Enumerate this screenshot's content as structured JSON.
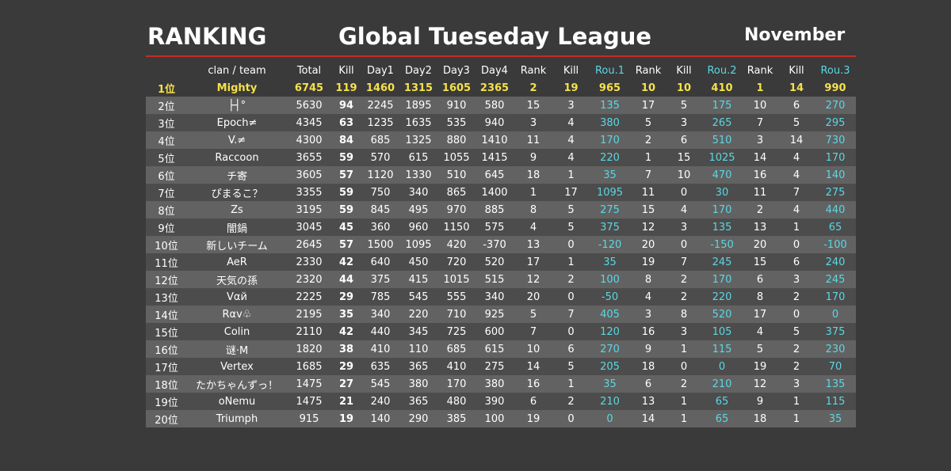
{
  "header": {
    "left_title": "RANKING",
    "center_title": "Global Tueseday League",
    "right_title": "November"
  },
  "colors": {
    "background": "#3a3a3a",
    "accent_line": "#c62a24",
    "highlight_yellow": "#f5e14a",
    "round_cyan": "#5ad7e3",
    "row_light": "#626262",
    "row_dark": "#4c4c4c"
  },
  "table": {
    "columns": [
      "",
      "clan / team",
      "Total",
      "Kill",
      "Day1",
      "Day2",
      "Day3",
      "Day4",
      "Rank",
      "Kill",
      "Rou.1",
      "Rank",
      "Kill",
      "Rou.2",
      "Rank",
      "Kill",
      "Rou.3"
    ],
    "rows": [
      [
        "1位",
        "Mighty",
        "6745",
        "119",
        "1460",
        "1315",
        "1605",
        "2365",
        "2",
        "19",
        "965",
        "10",
        "10",
        "410",
        "1",
        "14",
        "990"
      ],
      [
        "2位",
        "├┤°",
        "5630",
        "94",
        "2245",
        "1895",
        "910",
        "580",
        "15",
        "3",
        "135",
        "17",
        "5",
        "175",
        "10",
        "6",
        "270"
      ],
      [
        "3位",
        "Epoch≠",
        "4345",
        "63",
        "1235",
        "1635",
        "535",
        "940",
        "3",
        "4",
        "380",
        "5",
        "3",
        "265",
        "7",
        "5",
        "295"
      ],
      [
        "4位",
        "V.≠",
        "4300",
        "84",
        "685",
        "1325",
        "880",
        "1410",
        "11",
        "4",
        "170",
        "2",
        "6",
        "510",
        "3",
        "14",
        "730"
      ],
      [
        "5位",
        "Raccoon",
        "3655",
        "59",
        "570",
        "615",
        "1055",
        "1415",
        "9",
        "4",
        "220",
        "1",
        "15",
        "1025",
        "14",
        "4",
        "170"
      ],
      [
        "6位",
        "チ寄",
        "3605",
        "57",
        "1120",
        "1330",
        "510",
        "645",
        "18",
        "1",
        "35",
        "7",
        "10",
        "470",
        "16",
        "4",
        "140"
      ],
      [
        "7位",
        "ぴまるこ？",
        "3355",
        "59",
        "750",
        "340",
        "865",
        "1400",
        "1",
        "17",
        "1095",
        "11",
        "0",
        "30",
        "11",
        "7",
        "275"
      ],
      [
        "8位",
        "Zs",
        "3195",
        "59",
        "845",
        "495",
        "970",
        "885",
        "8",
        "5",
        "275",
        "15",
        "4",
        "170",
        "2",
        "4",
        "440"
      ],
      [
        "9位",
        "闇鍋",
        "3045",
        "45",
        "360",
        "960",
        "1150",
        "575",
        "4",
        "5",
        "375",
        "12",
        "3",
        "135",
        "13",
        "1",
        "65"
      ],
      [
        "10位",
        "新しいチーム",
        "2645",
        "57",
        "1500",
        "1095",
        "420",
        "-370",
        "13",
        "0",
        "-120",
        "20",
        "0",
        "-150",
        "20",
        "0",
        "-100"
      ],
      [
        "11位",
        "AeR",
        "2330",
        "42",
        "640",
        "450",
        "720",
        "520",
        "17",
        "1",
        "35",
        "19",
        "7",
        "245",
        "15",
        "6",
        "240"
      ],
      [
        "12位",
        "天気の孫",
        "2320",
        "44",
        "375",
        "415",
        "1015",
        "515",
        "12",
        "2",
        "100",
        "8",
        "2",
        "170",
        "6",
        "3",
        "245"
      ],
      [
        "13位",
        "Vαй",
        "2225",
        "29",
        "785",
        "545",
        "555",
        "340",
        "20",
        "0",
        "-50",
        "4",
        "2",
        "220",
        "8",
        "2",
        "170"
      ],
      [
        "14位",
        "Rαv♧",
        "2195",
        "35",
        "340",
        "220",
        "710",
        "925",
        "5",
        "7",
        "405",
        "3",
        "8",
        "520",
        "17",
        "0",
        "0"
      ],
      [
        "15位",
        "Colin",
        "2110",
        "42",
        "440",
        "345",
        "725",
        "600",
        "7",
        "0",
        "120",
        "16",
        "3",
        "105",
        "4",
        "5",
        "375"
      ],
      [
        "16位",
        "谜·M",
        "1820",
        "38",
        "410",
        "110",
        "685",
        "615",
        "10",
        "6",
        "270",
        "9",
        "1",
        "115",
        "5",
        "2",
        "230"
      ],
      [
        "17位",
        "Vertex",
        "1685",
        "29",
        "635",
        "365",
        "410",
        "275",
        "14",
        "5",
        "205",
        "18",
        "0",
        "0",
        "19",
        "2",
        "70"
      ],
      [
        "18位",
        "たかちゃんずっ！",
        "1475",
        "27",
        "545",
        "380",
        "170",
        "380",
        "16",
        "1",
        "35",
        "6",
        "2",
        "210",
        "12",
        "3",
        "135"
      ],
      [
        "19位",
        "oNemu",
        "1475",
        "21",
        "240",
        "365",
        "480",
        "390",
        "6",
        "2",
        "210",
        "13",
        "1",
        "65",
        "9",
        "1",
        "115"
      ],
      [
        "20位",
        "Triumph",
        "915",
        "19",
        "140",
        "290",
        "385",
        "100",
        "19",
        "0",
        "0",
        "14",
        "1",
        "65",
        "18",
        "1",
        "35"
      ]
    ]
  }
}
